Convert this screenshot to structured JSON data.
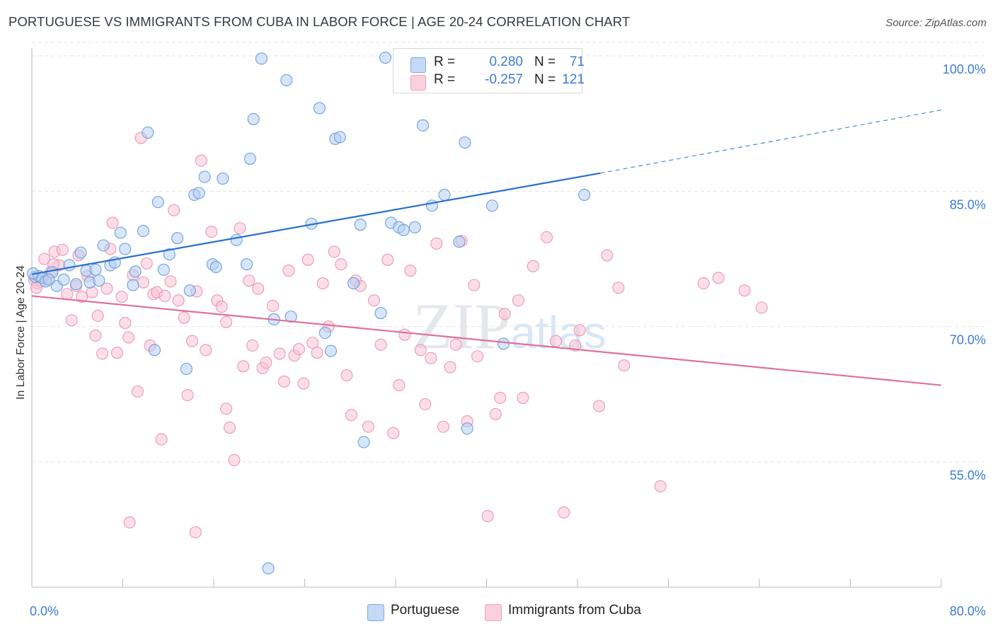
{
  "title": "PORTUGUESE VS IMMIGRANTS FROM CUBA IN LABOR FORCE | AGE 20-24 CORRELATION CHART",
  "source": "Source: ZipAtlas.com",
  "watermark": "ZIPatlas",
  "legend_top": {
    "rows": [
      {
        "r_label": "R =",
        "r_value": "0.280",
        "n_label": "N =",
        "n_value": "71",
        "color": "#a8c8f0"
      },
      {
        "r_label": "R =",
        "r_value": "-0.257",
        "n_label": "N =",
        "n_value": "121",
        "color": "#f7b8cc"
      }
    ]
  },
  "legend_bottom": [
    {
      "label": "Portuguese",
      "color": "#a8c8f0"
    },
    {
      "label": "Immigrants from Cuba",
      "color": "#f7b8cc"
    }
  ],
  "chart_data": {
    "type": "scatter",
    "title": "PORTUGUESE VS IMMIGRANTS FROM CUBA IN LABOR FORCE | AGE 20-24 CORRELATION CHART",
    "xlabel": "",
    "ylabel": "In Labor Force | Age 20-24",
    "xlim": [
      0,
      80
    ],
    "ylim": [
      40,
      102
    ],
    "x_tick_labels": [
      "0.0%",
      "80.0%"
    ],
    "y_ticks": [
      55,
      70,
      85,
      100
    ],
    "y_tick_labels": [
      "55.0%",
      "70.0%",
      "85.0%",
      "100.0%"
    ],
    "grid": true,
    "legend_position": "top-center",
    "colors": {
      "portuguese": "#5b93dd",
      "cuba": "#e887a8",
      "blue_line": "#2a6fcc",
      "pink_line": "#e0709a",
      "tick_text": "#3d7bd6"
    },
    "series": [
      {
        "name": "Portuguese",
        "color": "#a8c8f0",
        "trend": {
          "x0": 0,
          "y0": 75.8,
          "x1": 50,
          "y1": 87.0,
          "dashed_to_x": 80,
          "dashed_to_y": 94.0
        },
        "points": [
          [
            0.3,
            75.5
          ],
          [
            0.6,
            75.6
          ],
          [
            0.9,
            75.4
          ],
          [
            1.2,
            75.0
          ],
          [
            1.8,
            76.0
          ],
          [
            2.2,
            74.5
          ],
          [
            2.8,
            75.2
          ],
          [
            3.3,
            76.8
          ],
          [
            4.3,
            78.2
          ],
          [
            4.8,
            76.2
          ],
          [
            5.1,
            74.9
          ],
          [
            5.6,
            76.3
          ],
          [
            5.9,
            75.1
          ],
          [
            6.3,
            79.0
          ],
          [
            6.9,
            76.8
          ],
          [
            7.3,
            77.1
          ],
          [
            7.8,
            80.4
          ],
          [
            8.2,
            78.6
          ],
          [
            8.9,
            74.6
          ],
          [
            9.1,
            76.1
          ],
          [
            9.8,
            80.6
          ],
          [
            10.2,
            91.5
          ],
          [
            10.8,
            67.4
          ],
          [
            11.1,
            83.8
          ],
          [
            11.6,
            76.3
          ],
          [
            12.1,
            78.0
          ],
          [
            12.8,
            79.8
          ],
          [
            13.6,
            65.3
          ],
          [
            13.9,
            74.0
          ],
          [
            14.3,
            84.6
          ],
          [
            14.7,
            84.8
          ],
          [
            15.2,
            86.6
          ],
          [
            15.9,
            76.9
          ],
          [
            16.2,
            76.6
          ],
          [
            16.8,
            86.4
          ],
          [
            18.0,
            79.6
          ],
          [
            18.9,
            76.9
          ],
          [
            19.2,
            88.6
          ],
          [
            19.5,
            93.0
          ],
          [
            20.2,
            99.7
          ],
          [
            20.8,
            43.2
          ],
          [
            21.3,
            70.8
          ],
          [
            22.4,
            97.3
          ],
          [
            22.8,
            71.1
          ],
          [
            24.6,
            81.4
          ],
          [
            25.3,
            94.2
          ],
          [
            25.8,
            69.3
          ],
          [
            26.3,
            67.3
          ],
          [
            26.7,
            90.8
          ],
          [
            27.1,
            91.0
          ],
          [
            28.3,
            74.8
          ],
          [
            28.9,
            81.3
          ],
          [
            29.2,
            57.2
          ],
          [
            30.7,
            71.5
          ],
          [
            31.1,
            99.8
          ],
          [
            31.6,
            81.5
          ],
          [
            32.3,
            81.0
          ],
          [
            32.7,
            80.7
          ],
          [
            33.7,
            81.0
          ],
          [
            34.4,
            92.3
          ],
          [
            35.2,
            83.4
          ],
          [
            36.3,
            84.6
          ],
          [
            37.6,
            79.4
          ],
          [
            38.1,
            90.4
          ],
          [
            38.3,
            58.7
          ],
          [
            40.5,
            83.4
          ],
          [
            41.5,
            68.1
          ],
          [
            48.6,
            84.6
          ],
          [
            0.1,
            75.9
          ],
          [
            1.5,
            75.2
          ],
          [
            3.9,
            74.7
          ]
        ]
      },
      {
        "name": "Immigrants from Cuba",
        "color": "#f7b8cc",
        "trend": {
          "x0": 0,
          "y0": 73.4,
          "x1": 80,
          "y1": 63.5
        },
        "points": [
          [
            0.2,
            75.2
          ],
          [
            0.5,
            74.8
          ],
          [
            0.8,
            75.0
          ],
          [
            1.1,
            77.5
          ],
          [
            1.3,
            75.3
          ],
          [
            1.7,
            76.1
          ],
          [
            2.0,
            78.3
          ],
          [
            2.4,
            76.8
          ],
          [
            2.7,
            78.5
          ],
          [
            3.1,
            73.6
          ],
          [
            3.5,
            70.7
          ],
          [
            3.9,
            74.5
          ],
          [
            4.1,
            77.9
          ],
          [
            4.4,
            73.3
          ],
          [
            4.9,
            75.6
          ],
          [
            5.3,
            73.8
          ],
          [
            5.8,
            71.2
          ],
          [
            6.2,
            67.0
          ],
          [
            6.6,
            74.2
          ],
          [
            6.9,
            78.6
          ],
          [
            7.1,
            81.5
          ],
          [
            7.5,
            67.1
          ],
          [
            7.9,
            73.3
          ],
          [
            8.2,
            70.4
          ],
          [
            8.5,
            68.8
          ],
          [
            8.9,
            75.7
          ],
          [
            9.3,
            62.8
          ],
          [
            9.6,
            90.9
          ],
          [
            10.1,
            77.0
          ],
          [
            10.4,
            67.9
          ],
          [
            10.7,
            73.6
          ],
          [
            11.0,
            73.8
          ],
          [
            11.4,
            57.5
          ],
          [
            11.7,
            73.4
          ],
          [
            12.2,
            75.0
          ],
          [
            12.5,
            82.9
          ],
          [
            12.9,
            72.9
          ],
          [
            13.4,
            71.0
          ],
          [
            13.7,
            62.4
          ],
          [
            14.1,
            68.4
          ],
          [
            14.5,
            73.9
          ],
          [
            14.9,
            88.4
          ],
          [
            15.3,
            67.4
          ],
          [
            15.8,
            80.5
          ],
          [
            16.3,
            72.9
          ],
          [
            16.7,
            72.2
          ],
          [
            17.1,
            70.5
          ],
          [
            17.4,
            58.8
          ],
          [
            17.8,
            55.2
          ],
          [
            18.3,
            80.9
          ],
          [
            18.6,
            65.6
          ],
          [
            19.1,
            75.1
          ],
          [
            19.4,
            67.9
          ],
          [
            19.9,
            74.2
          ],
          [
            20.3,
            65.4
          ],
          [
            20.6,
            66.0
          ],
          [
            21.2,
            72.3
          ],
          [
            21.8,
            67.0
          ],
          [
            22.2,
            63.9
          ],
          [
            22.6,
            76.2
          ],
          [
            23.1,
            66.8
          ],
          [
            23.5,
            67.5
          ],
          [
            23.9,
            63.7
          ],
          [
            24.3,
            77.4
          ],
          [
            24.7,
            68.2
          ],
          [
            25.1,
            67.1
          ],
          [
            25.6,
            74.8
          ],
          [
            26.1,
            70.0
          ],
          [
            26.6,
            78.3
          ],
          [
            27.2,
            76.9
          ],
          [
            27.7,
            64.6
          ],
          [
            28.1,
            60.2
          ],
          [
            28.5,
            75.1
          ],
          [
            28.9,
            74.5
          ],
          [
            29.6,
            58.9
          ],
          [
            30.1,
            72.9
          ],
          [
            30.7,
            68.0
          ],
          [
            31.3,
            77.4
          ],
          [
            31.8,
            58.2
          ],
          [
            32.3,
            63.5
          ],
          [
            32.8,
            69.1
          ],
          [
            33.3,
            76.2
          ],
          [
            34.2,
            67.4
          ],
          [
            34.6,
            61.4
          ],
          [
            35.1,
            66.5
          ],
          [
            35.6,
            79.2
          ],
          [
            36.2,
            58.9
          ],
          [
            36.8,
            65.5
          ],
          [
            37.3,
            68.0
          ],
          [
            37.8,
            79.5
          ],
          [
            38.3,
            59.5
          ],
          [
            38.9,
            74.6
          ],
          [
            39.2,
            66.7
          ],
          [
            40.1,
            49.0
          ],
          [
            40.8,
            60.3
          ],
          [
            41.2,
            62.1
          ],
          [
            41.6,
            71.4
          ],
          [
            42.8,
            72.9
          ],
          [
            43.2,
            62.1
          ],
          [
            44.1,
            76.7
          ],
          [
            45.3,
            79.9
          ],
          [
            46.1,
            68.4
          ],
          [
            46.8,
            49.4
          ],
          [
            47.8,
            67.9
          ],
          [
            48.2,
            69.6
          ],
          [
            49.9,
            61.2
          ],
          [
            50.6,
            77.9
          ],
          [
            51.6,
            74.3
          ],
          [
            52.1,
            65.7
          ],
          [
            55.3,
            52.3
          ],
          [
            59.1,
            74.8
          ],
          [
            60.4,
            75.4
          ],
          [
            62.7,
            74.0
          ],
          [
            64.2,
            72.1
          ],
          [
            8.6,
            48.3
          ],
          [
            14.4,
            47.2
          ],
          [
            0.4,
            74.3
          ],
          [
            1.9,
            76.9
          ],
          [
            5.6,
            69.0
          ],
          [
            9.8,
            74.9
          ],
          [
            17.1,
            60.9
          ]
        ]
      }
    ]
  }
}
